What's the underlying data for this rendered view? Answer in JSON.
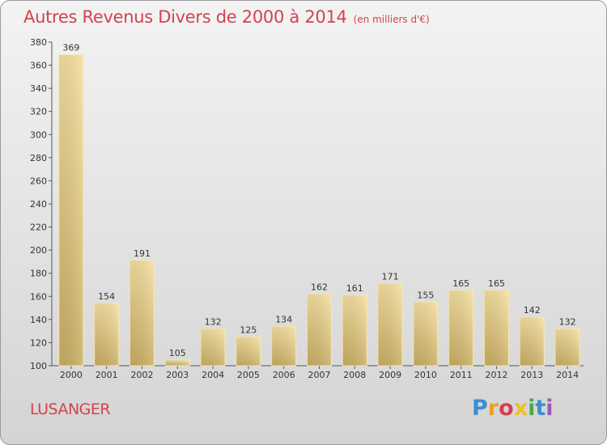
{
  "chart_data": {
    "type": "bar",
    "title": "Autres Revenus Divers de 2000 à 2014",
    "subtitle": "(en milliers d'€)",
    "categories": [
      "2000",
      "2001",
      "2002",
      "2003",
      "2004",
      "2005",
      "2006",
      "2007",
      "2008",
      "2009",
      "2010",
      "2011",
      "2012",
      "2013",
      "2014"
    ],
    "values": [
      369,
      154,
      191,
      105,
      132,
      125,
      134,
      162,
      161,
      171,
      155,
      165,
      165,
      142,
      132
    ],
    "ylim": [
      100,
      380
    ],
    "yticks": [
      100,
      120,
      140,
      160,
      180,
      200,
      220,
      240,
      260,
      280,
      300,
      320,
      340,
      360,
      380
    ],
    "grid": false,
    "legend": "none",
    "bar_color": "#e8cf7a",
    "title_color": "#d4424f"
  },
  "footer": {
    "commune": "LUSANGER",
    "logo_text": "Proxiti",
    "logo_colors": [
      "#3a8fd0",
      "#f0a020",
      "#d4424f",
      "#f0c020",
      "#4aa84a",
      "#3a8fd0",
      "#9b59b6"
    ]
  }
}
